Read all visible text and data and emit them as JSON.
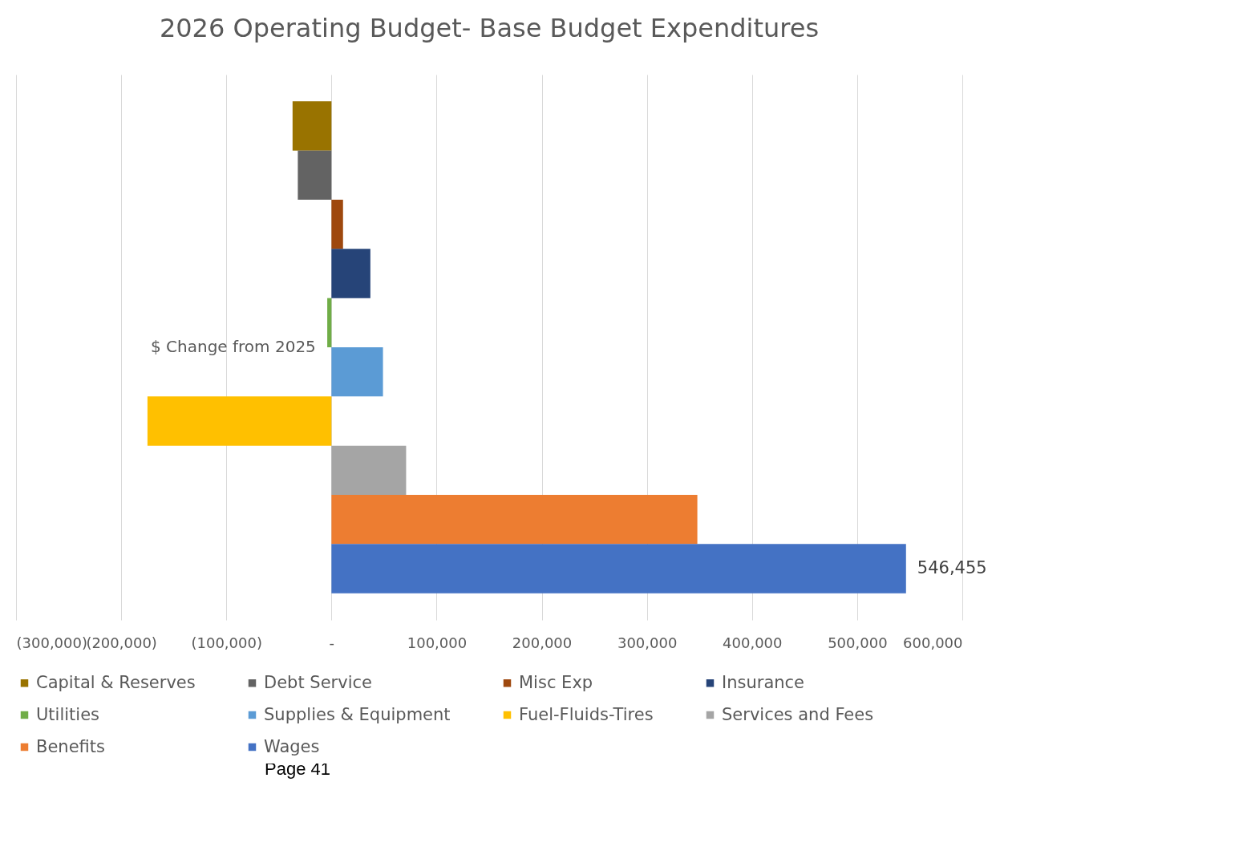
{
  "chart_data": {
    "type": "bar",
    "orientation": "horizontal",
    "title": "2026 Operating Budget- Base Budget Expenditures",
    "categories": [
      "$ Change from 2025"
    ],
    "series": [
      {
        "name": "Capital & Reserves",
        "color": "#997300",
        "values": [
          -37000
        ]
      },
      {
        "name": "Debt Service",
        "color": "#636363",
        "values": [
          -32000
        ]
      },
      {
        "name": "Misc Exp",
        "color": "#9e480e",
        "values": [
          11000
        ]
      },
      {
        "name": "Insurance",
        "color": "#264478",
        "values": [
          37000
        ]
      },
      {
        "name": "Utilities",
        "color": "#70ad47",
        "values": [
          -4000
        ]
      },
      {
        "name": "Supplies & Equipment",
        "color": "#5b9bd5",
        "values": [
          49000
        ]
      },
      {
        "name": "Fuel-Fluids-Tires",
        "color": "#ffc000",
        "values": [
          -175000
        ]
      },
      {
        "name": "Services and Fees",
        "color": "#a5a5a5",
        "values": [
          71000
        ]
      },
      {
        "name": "Benefits",
        "color": "#ed7d31",
        "values": [
          348000
        ]
      },
      {
        "name": "Wages",
        "color": "#4472c4",
        "values": [
          546455
        ],
        "value_labels": [
          "546,455"
        ]
      }
    ],
    "xlim": [
      -300000,
      600000
    ],
    "xticks": [
      {
        "value": -300000,
        "label": "(300,000)"
      },
      {
        "value": -200000,
        "label": "(200,000)"
      },
      {
        "value": -100000,
        "label": "(100,000)"
      },
      {
        "value": 0,
        "label": "-"
      },
      {
        "value": 100000,
        "label": "100,000"
      },
      {
        "value": 200000,
        "label": "200,000"
      },
      {
        "value": 300000,
        "label": "300,000"
      },
      {
        "value": 400000,
        "label": "400,000"
      },
      {
        "value": 500000,
        "label": "500,000"
      },
      {
        "value": 600000,
        "label": "600,000"
      }
    ],
    "grid": "x",
    "legend": "bottom",
    "annotations": [
      "Page 41"
    ]
  }
}
